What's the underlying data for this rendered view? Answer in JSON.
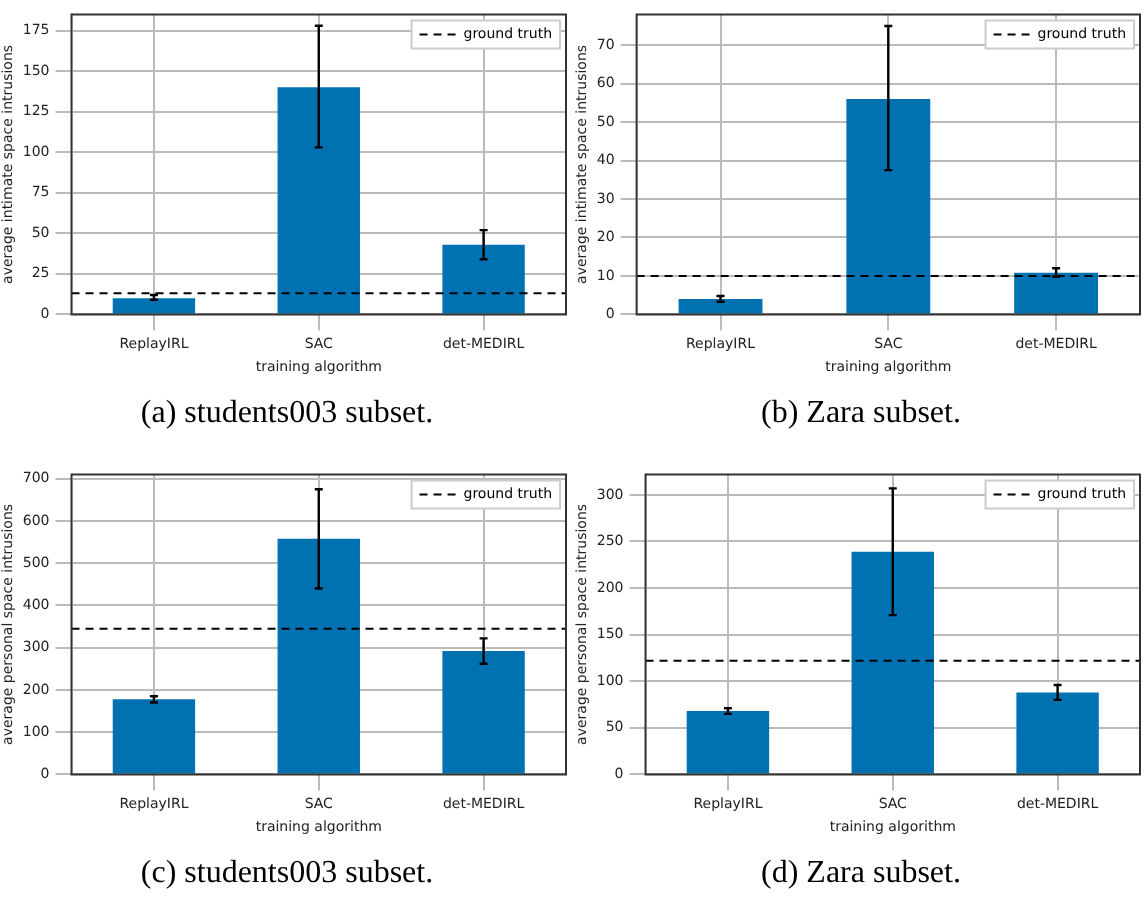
{
  "chart_data": [
    {
      "type": "bar",
      "xlabel": "training algorithm",
      "ylabel": "average intimate space intrusions",
      "categories": [
        "ReplayIRL",
        "SAC",
        "det-MEDIRL"
      ],
      "values": [
        10,
        140,
        43
      ],
      "errors": [
        [
          9,
          12
        ],
        [
          103,
          178
        ],
        [
          34,
          52
        ]
      ],
      "color": "#0072b2",
      "ylim": [
        0,
        185
      ],
      "yticks": [
        0,
        25,
        50,
        75,
        100,
        125,
        150,
        175
      ],
      "grid": true,
      "legend": "top right",
      "ref_lines": [
        {
          "axis": "y",
          "value": 13,
          "label": "ground truth",
          "color": "#000000",
          "line_style": "dashed"
        }
      ],
      "annotations": [
        "(a) students003 subset."
      ]
    },
    {
      "type": "bar",
      "xlabel": "training algorithm",
      "ylabel": "average intimate space intrusions",
      "categories": [
        "ReplayIRL",
        "SAC",
        "det-MEDIRL"
      ],
      "values": [
        4,
        56,
        10.8
      ],
      "errors": [
        [
          3.3,
          4.8
        ],
        [
          37.5,
          75
        ],
        [
          9.8,
          12
        ]
      ],
      "color": "#0072b2",
      "ylim": [
        0,
        78
      ],
      "yticks": [
        0,
        10,
        20,
        30,
        40,
        50,
        60,
        70
      ],
      "grid": true,
      "legend": "top right",
      "ref_lines": [
        {
          "axis": "y",
          "value": 10,
          "label": "ground truth",
          "color": "#000000",
          "line_style": "dashed"
        }
      ],
      "annotations": [
        "(b) Zara subset."
      ]
    },
    {
      "type": "bar",
      "xlabel": "training algorithm",
      "ylabel": "average personal space intrusions",
      "categories": [
        "ReplayIRL",
        "SAC",
        "det-MEDIRL"
      ],
      "values": [
        178,
        558,
        292
      ],
      "errors": [
        [
          170,
          185
        ],
        [
          440,
          675
        ],
        [
          262,
          322
        ]
      ],
      "color": "#0072b2",
      "ylim": [
        0,
        710
      ],
      "yticks": [
        0,
        100,
        200,
        300,
        400,
        500,
        600,
        700
      ],
      "grid": true,
      "legend": "top right",
      "ref_lines": [
        {
          "axis": "y",
          "value": 345,
          "label": "ground truth",
          "color": "#000000",
          "line_style": "dashed"
        }
      ],
      "annotations": [
        "(c) students003 subset."
      ]
    },
    {
      "type": "bar",
      "xlabel": "training algorithm",
      "ylabel": "average personal space intrusions",
      "categories": [
        "ReplayIRL",
        "SAC",
        "det-MEDIRL"
      ],
      "values": [
        68,
        239,
        88
      ],
      "errors": [
        [
          65,
          71
        ],
        [
          171,
          307
        ],
        [
          80,
          96
        ]
      ],
      "color": "#0072b2",
      "ylim": [
        0,
        322
      ],
      "yticks": [
        0,
        50,
        100,
        150,
        200,
        250,
        300
      ],
      "grid": true,
      "legend": "top right",
      "ref_lines": [
        {
          "axis": "y",
          "value": 122,
          "label": "ground truth",
          "color": "#000000",
          "line_style": "dashed"
        }
      ],
      "annotations": [
        "(d) Zara subset."
      ]
    }
  ]
}
